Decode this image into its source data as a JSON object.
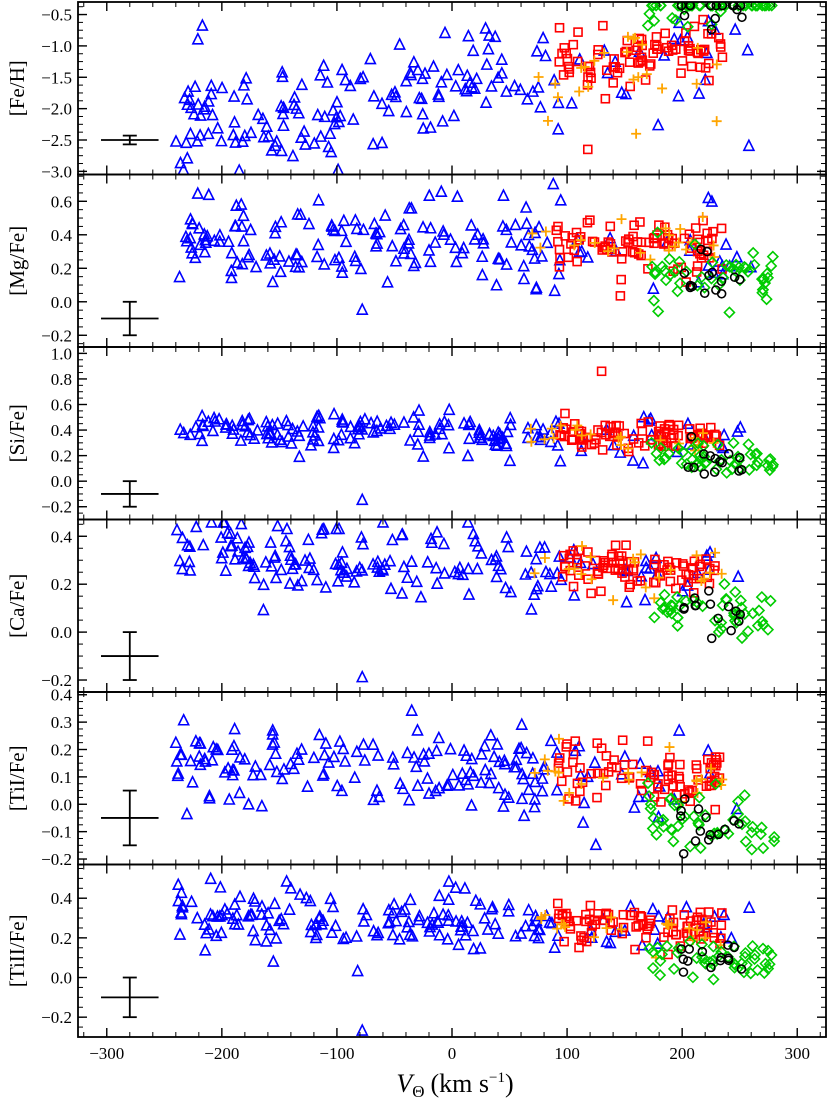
{
  "chart_data": {
    "type": "scatter",
    "shared_x": {
      "label": "V",
      "label_sub": "Θ",
      "label_units": "(km s",
      "label_units_sup": "−1",
      "label_units_close": ")",
      "xlim": [
        -325,
        325
      ],
      "ticks": [
        -300,
        -200,
        -100,
        0,
        100,
        200,
        300
      ],
      "tick_labels": [
        "−300",
        "−200",
        "−100",
        "0",
        "100",
        "200",
        "300"
      ]
    },
    "series_styles": {
      "triangles": {
        "color": "#0000ff",
        "marker": "triangle"
      },
      "squares": {
        "color": "#ff0000",
        "marker": "square"
      },
      "plus": {
        "color": "#ffa500",
        "marker": "plus"
      },
      "diamonds": {
        "color": "#00cc00",
        "marker": "diamond"
      },
      "circles": {
        "color": "#000000",
        "marker": "circle"
      }
    },
    "panels": [
      {
        "ylabel": "[Fe/H]",
        "ylim": [
          -3.05,
          -0.3
        ],
        "ticks": [
          -3.0,
          -2.5,
          -2.0,
          -1.5,
          -1.0,
          -0.5
        ],
        "tick_labels": [
          "−3.0",
          "−2.5",
          "−2.0",
          "−1.5",
          "−1.0",
          "−0.5"
        ],
        "errorbar": {
          "x": -280,
          "y": -2.5,
          "xerr": 25,
          "yerr": 0.07
        },
        "base": -1.7,
        "trend": 0.0022,
        "spread": 0.42,
        "seed": 11,
        "outliers": [
          {
            "series": "triangles",
            "x": -230,
            "y": -2.8
          },
          {
            "series": "triangles",
            "x": -105,
            "y": -2.7
          },
          {
            "series": "triangles",
            "x": 258,
            "y": -2.6
          },
          {
            "series": "squares",
            "x": 118,
            "y": -2.65
          },
          {
            "series": "plus",
            "x": 230,
            "y": -2.2
          },
          {
            "series": "plus",
            "x": 160,
            "y": -2.4
          }
        ]
      },
      {
        "ylabel": "[Mg/Fe]",
        "ylim": [
          -0.27,
          0.76
        ],
        "ticks": [
          -0.2,
          0.0,
          0.2,
          0.4,
          0.6
        ],
        "tick_labels": [
          "−0.2",
          "0.0",
          "0.2",
          "0.4",
          "0.6"
        ],
        "errorbar": {
          "x": -280,
          "y": -0.1,
          "xerr": 25,
          "yerr": 0.1
        },
        "base": 0.35,
        "trend": -0.0002,
        "spread": 0.12,
        "seed": 23,
        "outliers": [
          {
            "series": "triangles",
            "x": -78,
            "y": -0.05
          },
          {
            "series": "triangles",
            "x": 88,
            "y": 0.7
          }
        ]
      },
      {
        "ylabel": "[Si/Fe]",
        "ylim": [
          -0.3,
          1.05
        ],
        "ticks": [
          -0.2,
          0.0,
          0.2,
          0.4,
          0.6,
          0.8,
          1.0
        ],
        "tick_labels": [
          "−0.2",
          "0.0",
          "0.2",
          "0.4",
          "0.6",
          "0.8",
          "1.0"
        ],
        "errorbar": {
          "x": -280,
          "y": -0.1,
          "xerr": 25,
          "yerr": 0.1
        },
        "base": 0.36,
        "trend": -0.0002,
        "spread": 0.08,
        "seed": 37,
        "outliers": [
          {
            "series": "triangles",
            "x": -78,
            "y": -0.15
          },
          {
            "series": "squares",
            "x": 130,
            "y": 0.86
          }
        ]
      },
      {
        "ylabel": "[Ca/Fe]",
        "ylim": [
          -0.25,
          0.47
        ],
        "ticks": [
          -0.2,
          0.0,
          0.2,
          0.4
        ],
        "tick_labels": [
          "−0.2",
          "0.0",
          "0.2",
          "0.4"
        ],
        "errorbar": {
          "x": -280,
          "y": -0.1,
          "xerr": 25,
          "yerr": 0.1
        },
        "base": 0.28,
        "trend": -0.0002,
        "spread": 0.07,
        "seed": 51,
        "outliers": [
          {
            "series": "triangles",
            "x": -78,
            "y": -0.19
          }
        ]
      },
      {
        "ylabel": "[TiI/Fe]",
        "ylim": [
          -0.22,
          0.41
        ],
        "ticks": [
          -0.2,
          -0.1,
          0.0,
          0.1,
          0.2,
          0.3,
          0.4
        ],
        "tick_labels": [
          "−0.2",
          "−0.1",
          "0.0",
          "0.1",
          "0.2",
          "0.3",
          "0.4"
        ],
        "errorbar": {
          "x": -280,
          "y": -0.05,
          "xerr": 25,
          "yerr": 0.1
        },
        "base": 0.12,
        "trend": -0.0002,
        "spread": 0.07,
        "seed": 67,
        "outliers": [
          {
            "series": "triangles",
            "x": -35,
            "y": 0.34
          },
          {
            "series": "triangles",
            "x": 125,
            "y": -0.15
          },
          {
            "series": "diamonds",
            "x": 280,
            "y": -0.12
          }
        ]
      },
      {
        "ylabel": "[TiII/Fe]",
        "ylim": [
          -0.3,
          0.57
        ],
        "ticks": [
          -0.2,
          0.0,
          0.2,
          0.4
        ],
        "tick_labels": [
          "−0.2",
          "0.0",
          "0.2",
          "0.4"
        ],
        "errorbar": {
          "x": -280,
          "y": -0.1,
          "xerr": 25,
          "yerr": 0.1
        },
        "base": 0.28,
        "trend": -0.0002,
        "spread": 0.07,
        "seed": 83,
        "outliers": [
          {
            "series": "triangles",
            "x": -78,
            "y": -0.27
          },
          {
            "series": "triangles",
            "x": -82,
            "y": 0.03
          }
        ]
      }
    ]
  }
}
